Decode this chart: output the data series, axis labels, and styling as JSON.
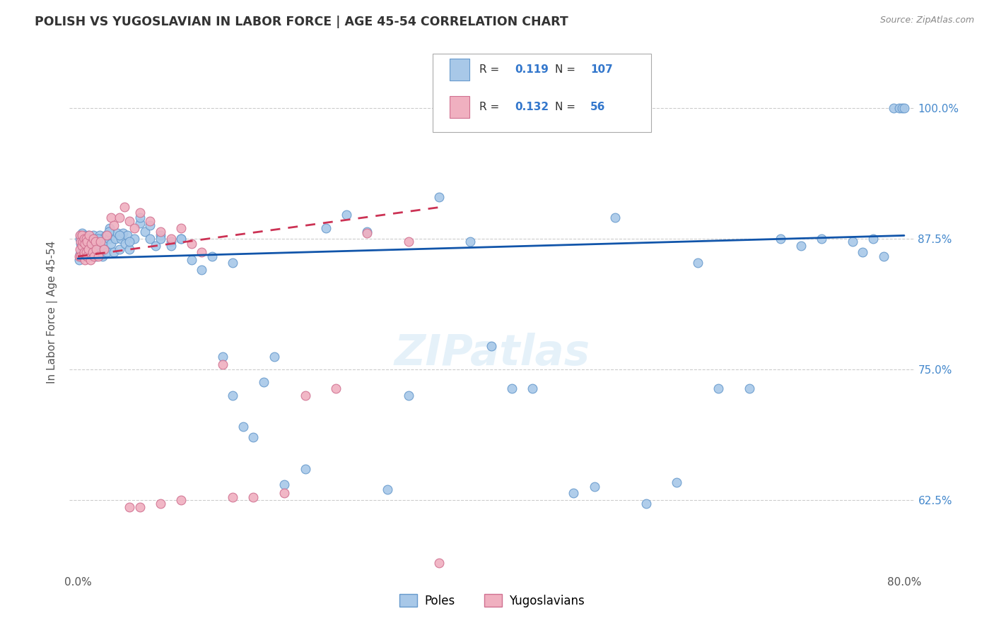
{
  "title": "POLISH VS YUGOSLAVIAN IN LABOR FORCE | AGE 45-54 CORRELATION CHART",
  "source": "Source: ZipAtlas.com",
  "ylabel": "In Labor Force | Age 45-54",
  "y_ticks": [
    0.625,
    0.75,
    0.875,
    1.0
  ],
  "y_tick_labels": [
    "62.5%",
    "75.0%",
    "87.5%",
    "100.0%"
  ],
  "poles_color": "#a8c8e8",
  "poles_edge": "#6699cc",
  "yugoslavians_color": "#f0b0c0",
  "yugoslavians_edge": "#d07090",
  "trend_poles_color": "#1155aa",
  "trend_yugoslavians_color": "#cc3355",
  "legend_poles_R": "0.119",
  "legend_poles_N": "107",
  "legend_yugoslavians_R": "0.132",
  "legend_yugoslavians_N": "56",
  "grid_color": "#cccccc",
  "background_color": "#ffffff",
  "poles_x": [
    0.001,
    0.002,
    0.002,
    0.003,
    0.003,
    0.004,
    0.004,
    0.005,
    0.005,
    0.006,
    0.006,
    0.007,
    0.007,
    0.008,
    0.008,
    0.009,
    0.01,
    0.01,
    0.011,
    0.012,
    0.013,
    0.014,
    0.015,
    0.016,
    0.017,
    0.018,
    0.019,
    0.02,
    0.021,
    0.022,
    0.023,
    0.024,
    0.025,
    0.026,
    0.027,
    0.028,
    0.03,
    0.031,
    0.032,
    0.033,
    0.035,
    0.036,
    0.038,
    0.04,
    0.042,
    0.044,
    0.046,
    0.048,
    0.05,
    0.055,
    0.06,
    0.065,
    0.07,
    0.075,
    0.08,
    0.09,
    0.1,
    0.11,
    0.12,
    0.13,
    0.14,
    0.15,
    0.16,
    0.17,
    0.18,
    0.19,
    0.2,
    0.22,
    0.24,
    0.26,
    0.28,
    0.3,
    0.32,
    0.35,
    0.38,
    0.4,
    0.42,
    0.44,
    0.48,
    0.5,
    0.52,
    0.55,
    0.58,
    0.6,
    0.62,
    0.65,
    0.68,
    0.7,
    0.72,
    0.75,
    0.76,
    0.77,
    0.78,
    0.79,
    0.795,
    0.798,
    0.8,
    0.02,
    0.03,
    0.04,
    0.05,
    0.06,
    0.07,
    0.08,
    0.09,
    0.1,
    0.15
  ],
  "poles_y": [
    0.855,
    0.86,
    0.875,
    0.87,
    0.878,
    0.865,
    0.88,
    0.872,
    0.86,
    0.875,
    0.868,
    0.878,
    0.862,
    0.875,
    0.858,
    0.872,
    0.865,
    0.878,
    0.87,
    0.858,
    0.875,
    0.868,
    0.878,
    0.862,
    0.875,
    0.858,
    0.872,
    0.868,
    0.878,
    0.862,
    0.875,
    0.858,
    0.872,
    0.865,
    0.878,
    0.862,
    0.875,
    0.885,
    0.87,
    0.878,
    0.862,
    0.875,
    0.88,
    0.865,
    0.875,
    0.88,
    0.87,
    0.878,
    0.865,
    0.875,
    0.89,
    0.882,
    0.875,
    0.868,
    0.878,
    0.872,
    0.875,
    0.855,
    0.845,
    0.858,
    0.762,
    0.725,
    0.695,
    0.685,
    0.738,
    0.762,
    0.64,
    0.655,
    0.885,
    0.898,
    0.882,
    0.635,
    0.725,
    0.915,
    0.872,
    0.772,
    0.732,
    0.732,
    0.632,
    0.638,
    0.895,
    0.622,
    0.642,
    0.852,
    0.732,
    0.732,
    0.875,
    0.868,
    0.875,
    0.872,
    0.862,
    0.875,
    0.858,
    1.0,
    1.0,
    1.0,
    1.0,
    0.875,
    0.882,
    0.878,
    0.872,
    0.895,
    0.888,
    0.875,
    0.868,
    0.875,
    0.852
  ],
  "yugoslavians_x": [
    0.001,
    0.002,
    0.002,
    0.003,
    0.003,
    0.004,
    0.004,
    0.005,
    0.005,
    0.006,
    0.006,
    0.007,
    0.007,
    0.008,
    0.008,
    0.009,
    0.009,
    0.01,
    0.011,
    0.012,
    0.013,
    0.014,
    0.015,
    0.016,
    0.017,
    0.018,
    0.02,
    0.022,
    0.025,
    0.028,
    0.032,
    0.035,
    0.04,
    0.045,
    0.05,
    0.055,
    0.06,
    0.07,
    0.08,
    0.09,
    0.1,
    0.11,
    0.12,
    0.14,
    0.15,
    0.17,
    0.2,
    0.22,
    0.25,
    0.28,
    0.32,
    0.35,
    0.05,
    0.06,
    0.08,
    0.1
  ],
  "yugoslavians_y": [
    0.858,
    0.865,
    0.878,
    0.858,
    0.872,
    0.868,
    0.878,
    0.858,
    0.872,
    0.862,
    0.875,
    0.855,
    0.87,
    0.862,
    0.875,
    0.858,
    0.872,
    0.865,
    0.878,
    0.855,
    0.87,
    0.862,
    0.875,
    0.858,
    0.872,
    0.865,
    0.858,
    0.872,
    0.865,
    0.878,
    0.895,
    0.888,
    0.895,
    0.905,
    0.892,
    0.885,
    0.9,
    0.892,
    0.882,
    0.875,
    0.885,
    0.87,
    0.862,
    0.755,
    0.628,
    0.628,
    0.632,
    0.725,
    0.732,
    0.88,
    0.872,
    0.565,
    0.618,
    0.618,
    0.622,
    0.625
  ]
}
